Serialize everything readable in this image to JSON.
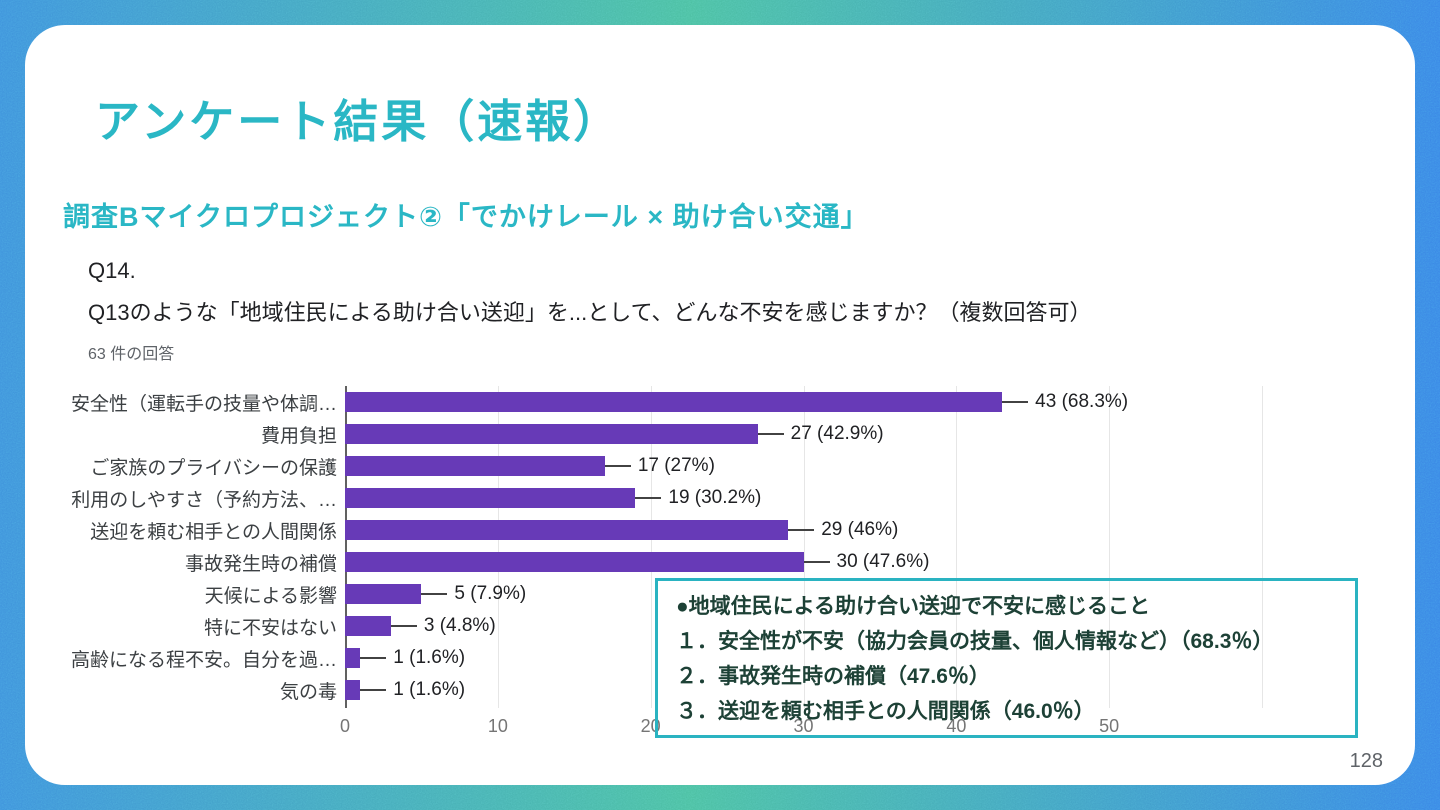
{
  "slide": {
    "title": "アンケート結果（速報）",
    "subtitle": "調査Bマイクロプロジェクト②「でかけレール × 助け合い交通」",
    "page_number": "128"
  },
  "question": {
    "number": "Q14.",
    "text": "Q13のような「地域住民による助け合い送迎」を...として、どんな不安を感じますか？（複数回答可）",
    "responses": "63 件の回答"
  },
  "chart_data": {
    "type": "bar",
    "orientation": "horizontal",
    "categories": [
      "安全性（運転手の技量や体調…",
      "費用負担",
      "ご家族のプライバシーの保護",
      "利用のしやすさ（予約方法、…",
      "送迎を頼む相手との人間関係",
      "事故発生時の補償",
      "天候による影響",
      "特に不安はない",
      "高齢になる程不安。自分を過…",
      "気の毒"
    ],
    "values": [
      43,
      27,
      17,
      19,
      29,
      30,
      5,
      3,
      1,
      1
    ],
    "value_labels": [
      "43 (68.3%)",
      "27 (42.9%)",
      "17 (27%)",
      "19 (30.2%)",
      "29 (46%)",
      "30 (47.6%)",
      "5 (7.9%)",
      "3 (4.8%)",
      "1 (1.6%)",
      "1 (1.6%)"
    ],
    "xticks": [
      0,
      10,
      20,
      30,
      40,
      50
    ],
    "xmax": 60,
    "grid": true,
    "bar_color": "#673ab7",
    "title": "",
    "xlabel": "",
    "ylabel": ""
  },
  "callout": {
    "title": "●地域住民による助け合い送迎で不安に感じること",
    "items": [
      "１．安全性が不安（協力会員の技量、個人情報など）（68.3％）",
      "２．事故発生時の補償（47.6％）",
      "３．送迎を頼む相手との人間関係（46.0％）"
    ]
  },
  "colors": {
    "accent_teal": "#2ab7c5",
    "bar_purple": "#673ab7",
    "callout_border": "#2ab3c1",
    "callout_text": "#1d4136",
    "bg_blue": "#3f93dc",
    "bg_green": "#4cc0a2",
    "grid_gray": "#e6e6e6",
    "text_dark": "#202124"
  }
}
